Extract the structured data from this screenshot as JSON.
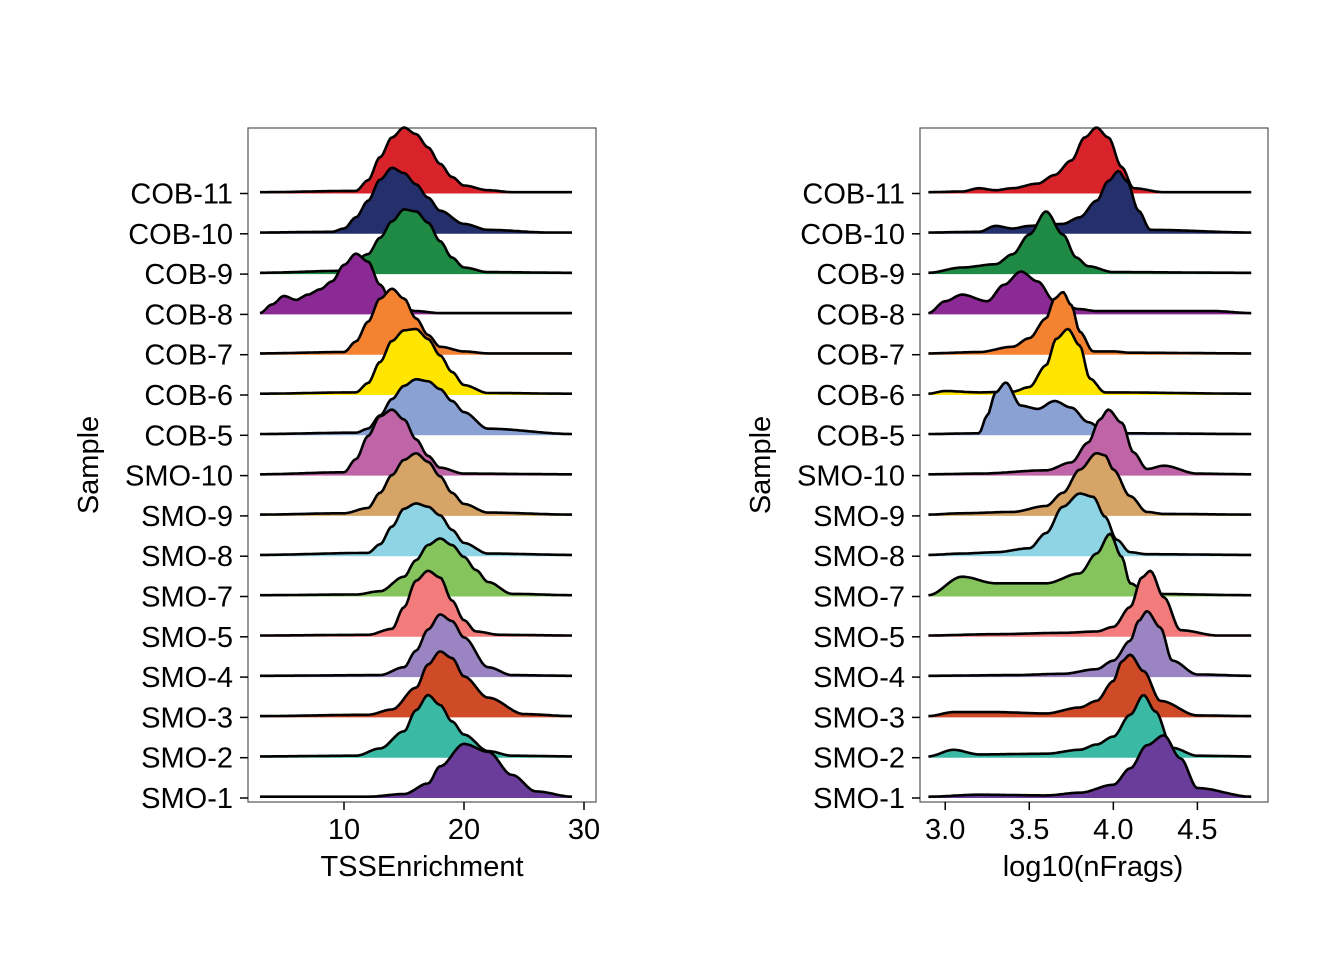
{
  "chart_data": [
    {
      "type": "ridgeline",
      "xlabel": "TSSEnrichment",
      "ylabel": "Sample",
      "xlim": [
        2,
        31
      ],
      "xticks": [
        "10",
        "20",
        "30"
      ],
      "categories": [
        "SMO-1",
        "SMO-2",
        "SMO-3",
        "SMO-4",
        "SMO-5",
        "SMO-7",
        "SMO-8",
        "SMO-9",
        "SMO-10",
        "COB-5",
        "COB-6",
        "COB-7",
        "COB-8",
        "COB-9",
        "COB-10",
        "COB-11"
      ],
      "series": [
        {
          "name": "SMO-1",
          "color": "#6a3d9a",
          "x": [
            3,
            12,
            15,
            17,
            18,
            20,
            22,
            24,
            26,
            29
          ],
          "density": [
            0.02,
            0.02,
            0.06,
            0.22,
            0.48,
            0.82,
            0.7,
            0.35,
            0.1,
            0.02
          ]
        },
        {
          "name": "SMO-2",
          "color": "#3ab9a5",
          "x": [
            3,
            11,
            13,
            15,
            16,
            17,
            18,
            19,
            20,
            22,
            24,
            29
          ],
          "density": [
            0.02,
            0.03,
            0.14,
            0.4,
            0.72,
            0.95,
            0.8,
            0.55,
            0.35,
            0.1,
            0.03,
            0.02
          ]
        },
        {
          "name": "SMO-3",
          "color": "#cf4a26",
          "x": [
            3,
            12,
            14,
            16,
            17,
            18,
            19,
            20,
            22,
            25,
            29
          ],
          "density": [
            0.02,
            0.04,
            0.12,
            0.45,
            0.8,
            1.0,
            0.9,
            0.62,
            0.3,
            0.05,
            0.02
          ]
        },
        {
          "name": "SMO-4",
          "color": "#9a85c2",
          "x": [
            3,
            13,
            15,
            16,
            17,
            18,
            19,
            20,
            22,
            24,
            29
          ],
          "density": [
            0.02,
            0.03,
            0.15,
            0.4,
            0.72,
            0.95,
            0.85,
            0.6,
            0.15,
            0.03,
            0.02
          ]
        },
        {
          "name": "SMO-5",
          "color": "#f27b7b",
          "x": [
            3,
            12,
            14,
            15,
            16,
            17,
            18,
            19,
            20,
            21,
            23,
            29
          ],
          "density": [
            0.02,
            0.03,
            0.12,
            0.45,
            0.85,
            1.0,
            0.9,
            0.55,
            0.25,
            0.08,
            0.03,
            0.02
          ]
        },
        {
          "name": "SMO-7",
          "color": "#85c45c",
          "x": [
            3,
            11,
            13,
            15,
            16,
            17,
            18,
            19,
            20,
            21,
            22,
            24,
            29
          ],
          "density": [
            0.02,
            0.03,
            0.08,
            0.3,
            0.55,
            0.78,
            0.88,
            0.78,
            0.6,
            0.4,
            0.22,
            0.04,
            0.02
          ]
        },
        {
          "name": "SMO-8",
          "color": "#8fd4e4",
          "x": [
            3,
            12,
            13,
            14,
            15,
            16,
            17,
            18,
            19,
            20,
            22,
            29
          ],
          "density": [
            0.02,
            0.05,
            0.18,
            0.45,
            0.72,
            0.8,
            0.75,
            0.62,
            0.4,
            0.2,
            0.04,
            0.02
          ]
        },
        {
          "name": "SMO-9",
          "color": "#d6a466",
          "x": [
            3,
            10,
            12,
            13,
            14,
            15,
            16,
            17,
            18,
            19,
            20,
            22,
            29
          ],
          "density": [
            0.02,
            0.04,
            0.12,
            0.35,
            0.62,
            0.85,
            0.95,
            0.82,
            0.6,
            0.35,
            0.18,
            0.05,
            0.02
          ]
        },
        {
          "name": "SMO-10",
          "color": "#c064a8",
          "x": [
            3,
            10,
            11,
            12,
            13,
            14,
            15,
            16,
            17,
            18,
            20,
            29
          ],
          "density": [
            0.02,
            0.05,
            0.25,
            0.6,
            0.9,
            1.0,
            0.85,
            0.55,
            0.3,
            0.12,
            0.03,
            0.02
          ]
        },
        {
          "name": "COB-5",
          "color": "#8aa1d4",
          "x": [
            3,
            11,
            12,
            13,
            14,
            15,
            16,
            17,
            18,
            19,
            20,
            22,
            29
          ],
          "density": [
            0.02,
            0.04,
            0.1,
            0.3,
            0.55,
            0.75,
            0.85,
            0.82,
            0.7,
            0.52,
            0.35,
            0.1,
            0.02
          ]
        },
        {
          "name": "COB-6",
          "color": "#ffe500",
          "x": [
            3,
            11,
            12,
            13,
            14,
            15,
            16,
            17,
            18,
            19,
            20,
            22,
            29
          ],
          "density": [
            0.02,
            0.04,
            0.18,
            0.5,
            0.82,
            0.98,
            1.0,
            0.85,
            0.6,
            0.35,
            0.15,
            0.03,
            0.02
          ]
        },
        {
          "name": "COB-7",
          "color": "#f58231",
          "x": [
            3,
            10,
            11,
            12,
            13,
            14,
            15,
            16,
            17,
            18,
            20,
            22,
            29
          ],
          "density": [
            0.02,
            0.04,
            0.2,
            0.5,
            0.85,
            1.0,
            0.85,
            0.55,
            0.3,
            0.12,
            0.05,
            0.02,
            0.02
          ]
        },
        {
          "name": "COB-8",
          "color": "#8b2a94",
          "x": [
            3,
            4,
            5,
            6,
            7,
            8,
            9,
            10,
            11,
            12,
            13,
            14,
            16,
            18,
            29
          ],
          "density": [
            0.02,
            0.15,
            0.28,
            0.22,
            0.3,
            0.38,
            0.5,
            0.75,
            0.92,
            0.8,
            0.45,
            0.18,
            0.05,
            0.02,
            0.02
          ]
        },
        {
          "name": "COB-9",
          "color": "#1e8a44",
          "x": [
            3,
            10,
            12,
            13,
            14,
            15,
            16,
            17,
            18,
            19,
            20,
            22,
            29
          ],
          "density": [
            0.02,
            0.05,
            0.3,
            0.55,
            0.8,
            0.98,
            0.95,
            0.78,
            0.5,
            0.25,
            0.1,
            0.03,
            0.02
          ]
        },
        {
          "name": "COB-10",
          "color": "#252f6b",
          "x": [
            3,
            9,
            10,
            11,
            12,
            13,
            14,
            15,
            16,
            17,
            18,
            20,
            22,
            27,
            29
          ],
          "density": [
            0.02,
            0.03,
            0.08,
            0.25,
            0.5,
            0.82,
            1.0,
            0.92,
            0.75,
            0.55,
            0.35,
            0.15,
            0.06,
            0.02,
            0.02
          ]
        },
        {
          "name": "COB-11",
          "color": "#d9232b",
          "x": [
            3,
            11,
            12,
            13,
            14,
            15,
            16,
            17,
            18,
            19,
            20,
            22,
            24,
            29
          ],
          "density": [
            0.02,
            0.04,
            0.2,
            0.55,
            0.85,
            1.0,
            0.9,
            0.7,
            0.45,
            0.25,
            0.12,
            0.05,
            0.02,
            0.02
          ]
        }
      ]
    },
    {
      "type": "ridgeline",
      "xlabel": "log10(nFrags)",
      "ylabel": "Sample",
      "xlim": [
        2.85,
        4.92
      ],
      "xticks": [
        "3.0",
        "3.5",
        "4.0",
        "4.5"
      ],
      "categories": [
        "SMO-1",
        "SMO-2",
        "SMO-3",
        "SMO-4",
        "SMO-5",
        "SMO-7",
        "SMO-8",
        "SMO-9",
        "SMO-10",
        "COB-5",
        "COB-6",
        "COB-7",
        "COB-8",
        "COB-9",
        "COB-10",
        "COB-11"
      ],
      "series": [
        {
          "name": "SMO-1",
          "color": "#6a3d9a",
          "x": [
            2.9,
            3.2,
            3.6,
            3.8,
            4.0,
            4.1,
            4.2,
            4.3,
            4.4,
            4.5,
            4.82
          ],
          "density": [
            0.02,
            0.05,
            0.04,
            0.08,
            0.2,
            0.45,
            0.8,
            0.95,
            0.6,
            0.15,
            0.02
          ]
        },
        {
          "name": "SMO-2",
          "color": "#3ab9a5",
          "x": [
            2.9,
            3.05,
            3.2,
            3.6,
            3.8,
            3.9,
            4.0,
            4.1,
            4.18,
            4.25,
            4.35,
            4.5,
            4.82
          ],
          "density": [
            0.02,
            0.12,
            0.05,
            0.06,
            0.12,
            0.2,
            0.32,
            0.65,
            0.95,
            0.7,
            0.15,
            0.03,
            0.02
          ]
        },
        {
          "name": "SMO-3",
          "color": "#cf4a26",
          "x": [
            2.9,
            3.05,
            3.3,
            3.6,
            3.8,
            3.9,
            4.0,
            4.05,
            4.1,
            4.18,
            4.28,
            4.5,
            4.82
          ],
          "density": [
            0.02,
            0.08,
            0.08,
            0.06,
            0.15,
            0.25,
            0.55,
            0.85,
            0.95,
            0.7,
            0.25,
            0.03,
            0.02
          ]
        },
        {
          "name": "SMO-4",
          "color": "#9a85c2",
          "x": [
            2.9,
            3.4,
            3.7,
            3.9,
            4.0,
            4.1,
            4.15,
            4.2,
            4.28,
            4.35,
            4.5,
            4.82
          ],
          "density": [
            0.02,
            0.03,
            0.05,
            0.12,
            0.25,
            0.55,
            0.85,
            1.0,
            0.75,
            0.25,
            0.04,
            0.02
          ]
        },
        {
          "name": "SMO-5",
          "color": "#f27b7b",
          "x": [
            2.9,
            3.3,
            3.7,
            3.9,
            4.0,
            4.1,
            4.17,
            4.22,
            4.3,
            4.4,
            4.62,
            4.82
          ],
          "density": [
            0.02,
            0.04,
            0.06,
            0.08,
            0.15,
            0.45,
            0.9,
            1.0,
            0.6,
            0.1,
            0.02,
            0.02
          ]
        },
        {
          "name": "SMO-7",
          "color": "#85c45c",
          "x": [
            2.9,
            3.1,
            3.3,
            3.6,
            3.8,
            3.9,
            3.98,
            4.05,
            4.1,
            4.2,
            4.82
          ],
          "density": [
            0.02,
            0.3,
            0.2,
            0.2,
            0.35,
            0.65,
            0.95,
            0.6,
            0.2,
            0.04,
            0.02
          ]
        },
        {
          "name": "SMO-8",
          "color": "#8fd4e4",
          "x": [
            2.9,
            3.1,
            3.3,
            3.5,
            3.6,
            3.7,
            3.8,
            3.88,
            3.95,
            4.02,
            4.1,
            4.2,
            4.82
          ],
          "density": [
            0.02,
            0.04,
            0.06,
            0.12,
            0.35,
            0.75,
            0.95,
            0.9,
            0.6,
            0.25,
            0.06,
            0.03,
            0.02
          ]
        },
        {
          "name": "SMO-9",
          "color": "#d6a466",
          "x": [
            2.9,
            3.1,
            3.4,
            3.6,
            3.7,
            3.8,
            3.9,
            3.95,
            4.0,
            4.1,
            4.2,
            4.3,
            4.82
          ],
          "density": [
            0.02,
            0.04,
            0.06,
            0.15,
            0.35,
            0.7,
            0.95,
            0.92,
            0.7,
            0.3,
            0.06,
            0.03,
            0.02
          ]
        },
        {
          "name": "SMO-10",
          "color": "#c064a8",
          "x": [
            2.9,
            3.2,
            3.6,
            3.75,
            3.85,
            3.92,
            3.97,
            4.05,
            4.12,
            4.2,
            4.3,
            4.5,
            4.82
          ],
          "density": [
            0.02,
            0.03,
            0.08,
            0.2,
            0.5,
            0.85,
            1.0,
            0.8,
            0.35,
            0.1,
            0.15,
            0.03,
            0.02
          ]
        },
        {
          "name": "COB-5",
          "color": "#8aa1d4",
          "x": [
            2.9,
            3.2,
            3.25,
            3.3,
            3.36,
            3.45,
            3.55,
            3.65,
            3.75,
            3.85,
            3.95,
            4.1,
            4.82
          ],
          "density": [
            0.02,
            0.03,
            0.3,
            0.65,
            0.8,
            0.45,
            0.4,
            0.52,
            0.42,
            0.2,
            0.06,
            0.03,
            0.02
          ]
        },
        {
          "name": "COB-6",
          "color": "#ffe500",
          "x": [
            2.9,
            3.0,
            3.2,
            3.4,
            3.5,
            3.6,
            3.66,
            3.73,
            3.8,
            3.86,
            3.95,
            4.82
          ],
          "density": [
            0.02,
            0.06,
            0.04,
            0.05,
            0.12,
            0.45,
            0.85,
            1.0,
            0.75,
            0.25,
            0.04,
            0.02
          ]
        },
        {
          "name": "COB-7",
          "color": "#f58231",
          "x": [
            2.9,
            3.2,
            3.4,
            3.5,
            3.6,
            3.65,
            3.7,
            3.75,
            3.8,
            3.88,
            4.0,
            4.1,
            4.82
          ],
          "density": [
            0.02,
            0.04,
            0.12,
            0.25,
            0.55,
            0.85,
            0.95,
            0.75,
            0.35,
            0.05,
            0.05,
            0.03,
            0.02
          ]
        },
        {
          "name": "COB-8",
          "color": "#8b2a94",
          "x": [
            2.9,
            3.0,
            3.1,
            3.25,
            3.35,
            3.45,
            3.55,
            3.65,
            3.8,
            3.9,
            4.1,
            4.6,
            4.82
          ],
          "density": [
            0.02,
            0.2,
            0.3,
            0.2,
            0.45,
            0.65,
            0.5,
            0.2,
            0.08,
            0.05,
            0.05,
            0.05,
            0.02
          ]
        },
        {
          "name": "COB-9",
          "color": "#1e8a44",
          "x": [
            2.9,
            3.1,
            3.3,
            3.4,
            3.5,
            3.6,
            3.7,
            3.78,
            3.85,
            4.0,
            4.82
          ],
          "density": [
            0.02,
            0.1,
            0.15,
            0.3,
            0.6,
            0.95,
            0.6,
            0.25,
            0.12,
            0.03,
            0.02
          ]
        },
        {
          "name": "COB-10",
          "color": "#252f6b",
          "x": [
            2.9,
            3.2,
            3.3,
            3.4,
            3.5,
            3.6,
            3.7,
            3.8,
            3.9,
            3.97,
            4.03,
            4.08,
            4.15,
            4.22,
            4.82
          ],
          "density": [
            0.02,
            0.03,
            0.12,
            0.08,
            0.12,
            0.14,
            0.15,
            0.25,
            0.5,
            0.8,
            0.95,
            0.8,
            0.35,
            0.06,
            0.02
          ]
        },
        {
          "name": "COB-11",
          "color": "#d9232b",
          "x": [
            2.9,
            3.1,
            3.2,
            3.3,
            3.4,
            3.55,
            3.65,
            3.75,
            3.83,
            3.9,
            3.97,
            4.05,
            4.12,
            4.3,
            4.82
          ],
          "density": [
            0.02,
            0.03,
            0.08,
            0.05,
            0.08,
            0.15,
            0.28,
            0.5,
            0.85,
            1.0,
            0.85,
            0.4,
            0.08,
            0.02,
            0.02
          ]
        }
      ]
    }
  ]
}
